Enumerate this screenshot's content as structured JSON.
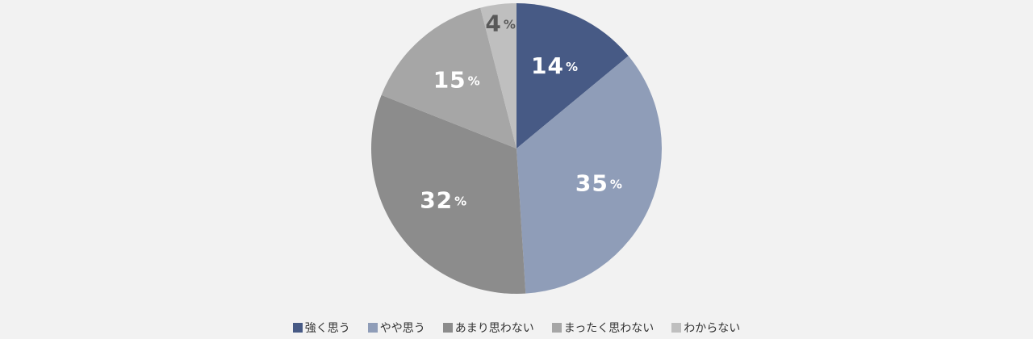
{
  "chart_data": {
    "type": "pie",
    "categories": [
      "強く思う",
      "やや思う",
      "あまり思わない",
      "まったく思わない",
      "わからない"
    ],
    "values": [
      14,
      35,
      32,
      15,
      4
    ],
    "unit": "%",
    "colors": [
      "#475a85",
      "#8f9db8",
      "#8c8c8c",
      "#a6a6a6",
      "#bfbfbf"
    ],
    "label_colors": [
      "#ffffff",
      "#ffffff",
      "#ffffff",
      "#ffffff",
      "#595959"
    ],
    "start_angle_deg": 0,
    "direction": "clockwise",
    "legend_position": "bottom"
  }
}
